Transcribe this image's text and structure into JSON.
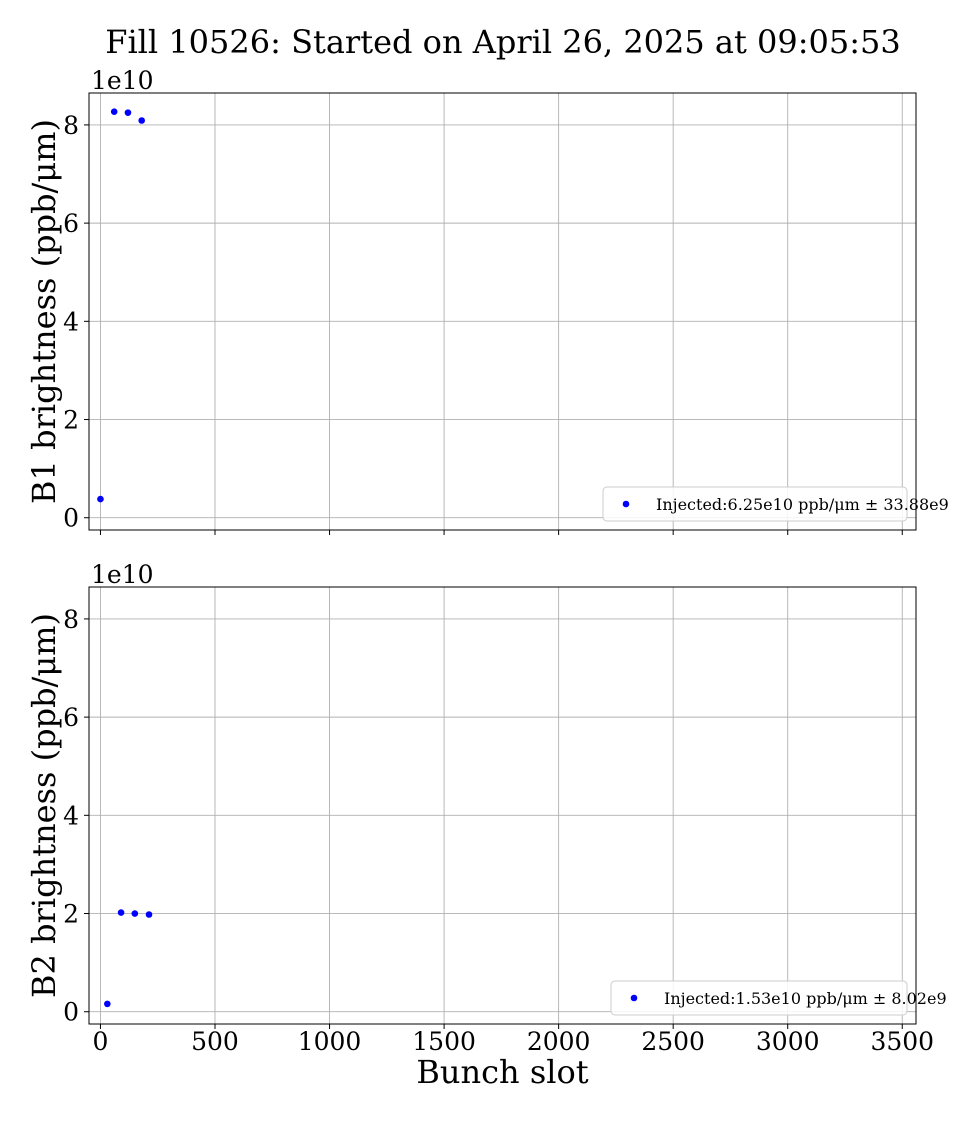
{
  "title": "Fill 10526: Started on April 26, 2025 at 09:05:53",
  "colors": {
    "marker": "#0000ff",
    "grid": "#b0b0b0",
    "axis": "#000000"
  },
  "chart_data": [
    {
      "type": "scatter",
      "xlabel": "",
      "ylabel": "B1 brightness (ppb/μm)",
      "offset_label": "1e10",
      "xlim": [
        -50,
        3560
      ],
      "ylim": [
        -0.25,
        8.65
      ],
      "x_ticks": [
        0,
        500,
        1000,
        1500,
        2000,
        2500,
        3000,
        3500
      ],
      "x_tick_labels_shown": false,
      "y_ticks": [
        0,
        2,
        4,
        6,
        8
      ],
      "y_tick_labels": [
        "0",
        "2",
        "4",
        "6",
        "8"
      ],
      "grid": true,
      "legend_position": "lower right",
      "series": [
        {
          "name": "Injected:6.25e10 ppb/μm ± 33.88e9",
          "color": "#0000ff",
          "points": [
            [
              0,
              0.38
            ],
            [
              60,
              8.27
            ],
            [
              120,
              8.25
            ],
            [
              180,
              8.09
            ]
          ]
        }
      ]
    },
    {
      "type": "scatter",
      "xlabel": "Bunch slot",
      "ylabel": "B2 brightness (ppb/μm)",
      "offset_label": "1e10",
      "xlim": [
        -50,
        3560
      ],
      "ylim": [
        -0.25,
        8.65
      ],
      "x_ticks": [
        0,
        500,
        1000,
        1500,
        2000,
        2500,
        3000,
        3500
      ],
      "x_tick_labels": [
        "0",
        "500",
        "1000",
        "1500",
        "2000",
        "2500",
        "3000",
        "3500"
      ],
      "x_tick_labels_shown": true,
      "y_ticks": [
        0,
        2,
        4,
        6,
        8
      ],
      "y_tick_labels": [
        "0",
        "2",
        "4",
        "6",
        "8"
      ],
      "grid": true,
      "legend_position": "lower right",
      "series": [
        {
          "name": "Injected:1.53e10 ppb/μm ± 8.02e9",
          "color": "#0000ff",
          "points": [
            [
              30,
              0.16
            ],
            [
              90,
              2.02
            ],
            [
              150,
              2.0
            ],
            [
              212,
              1.98
            ]
          ]
        }
      ]
    }
  ]
}
